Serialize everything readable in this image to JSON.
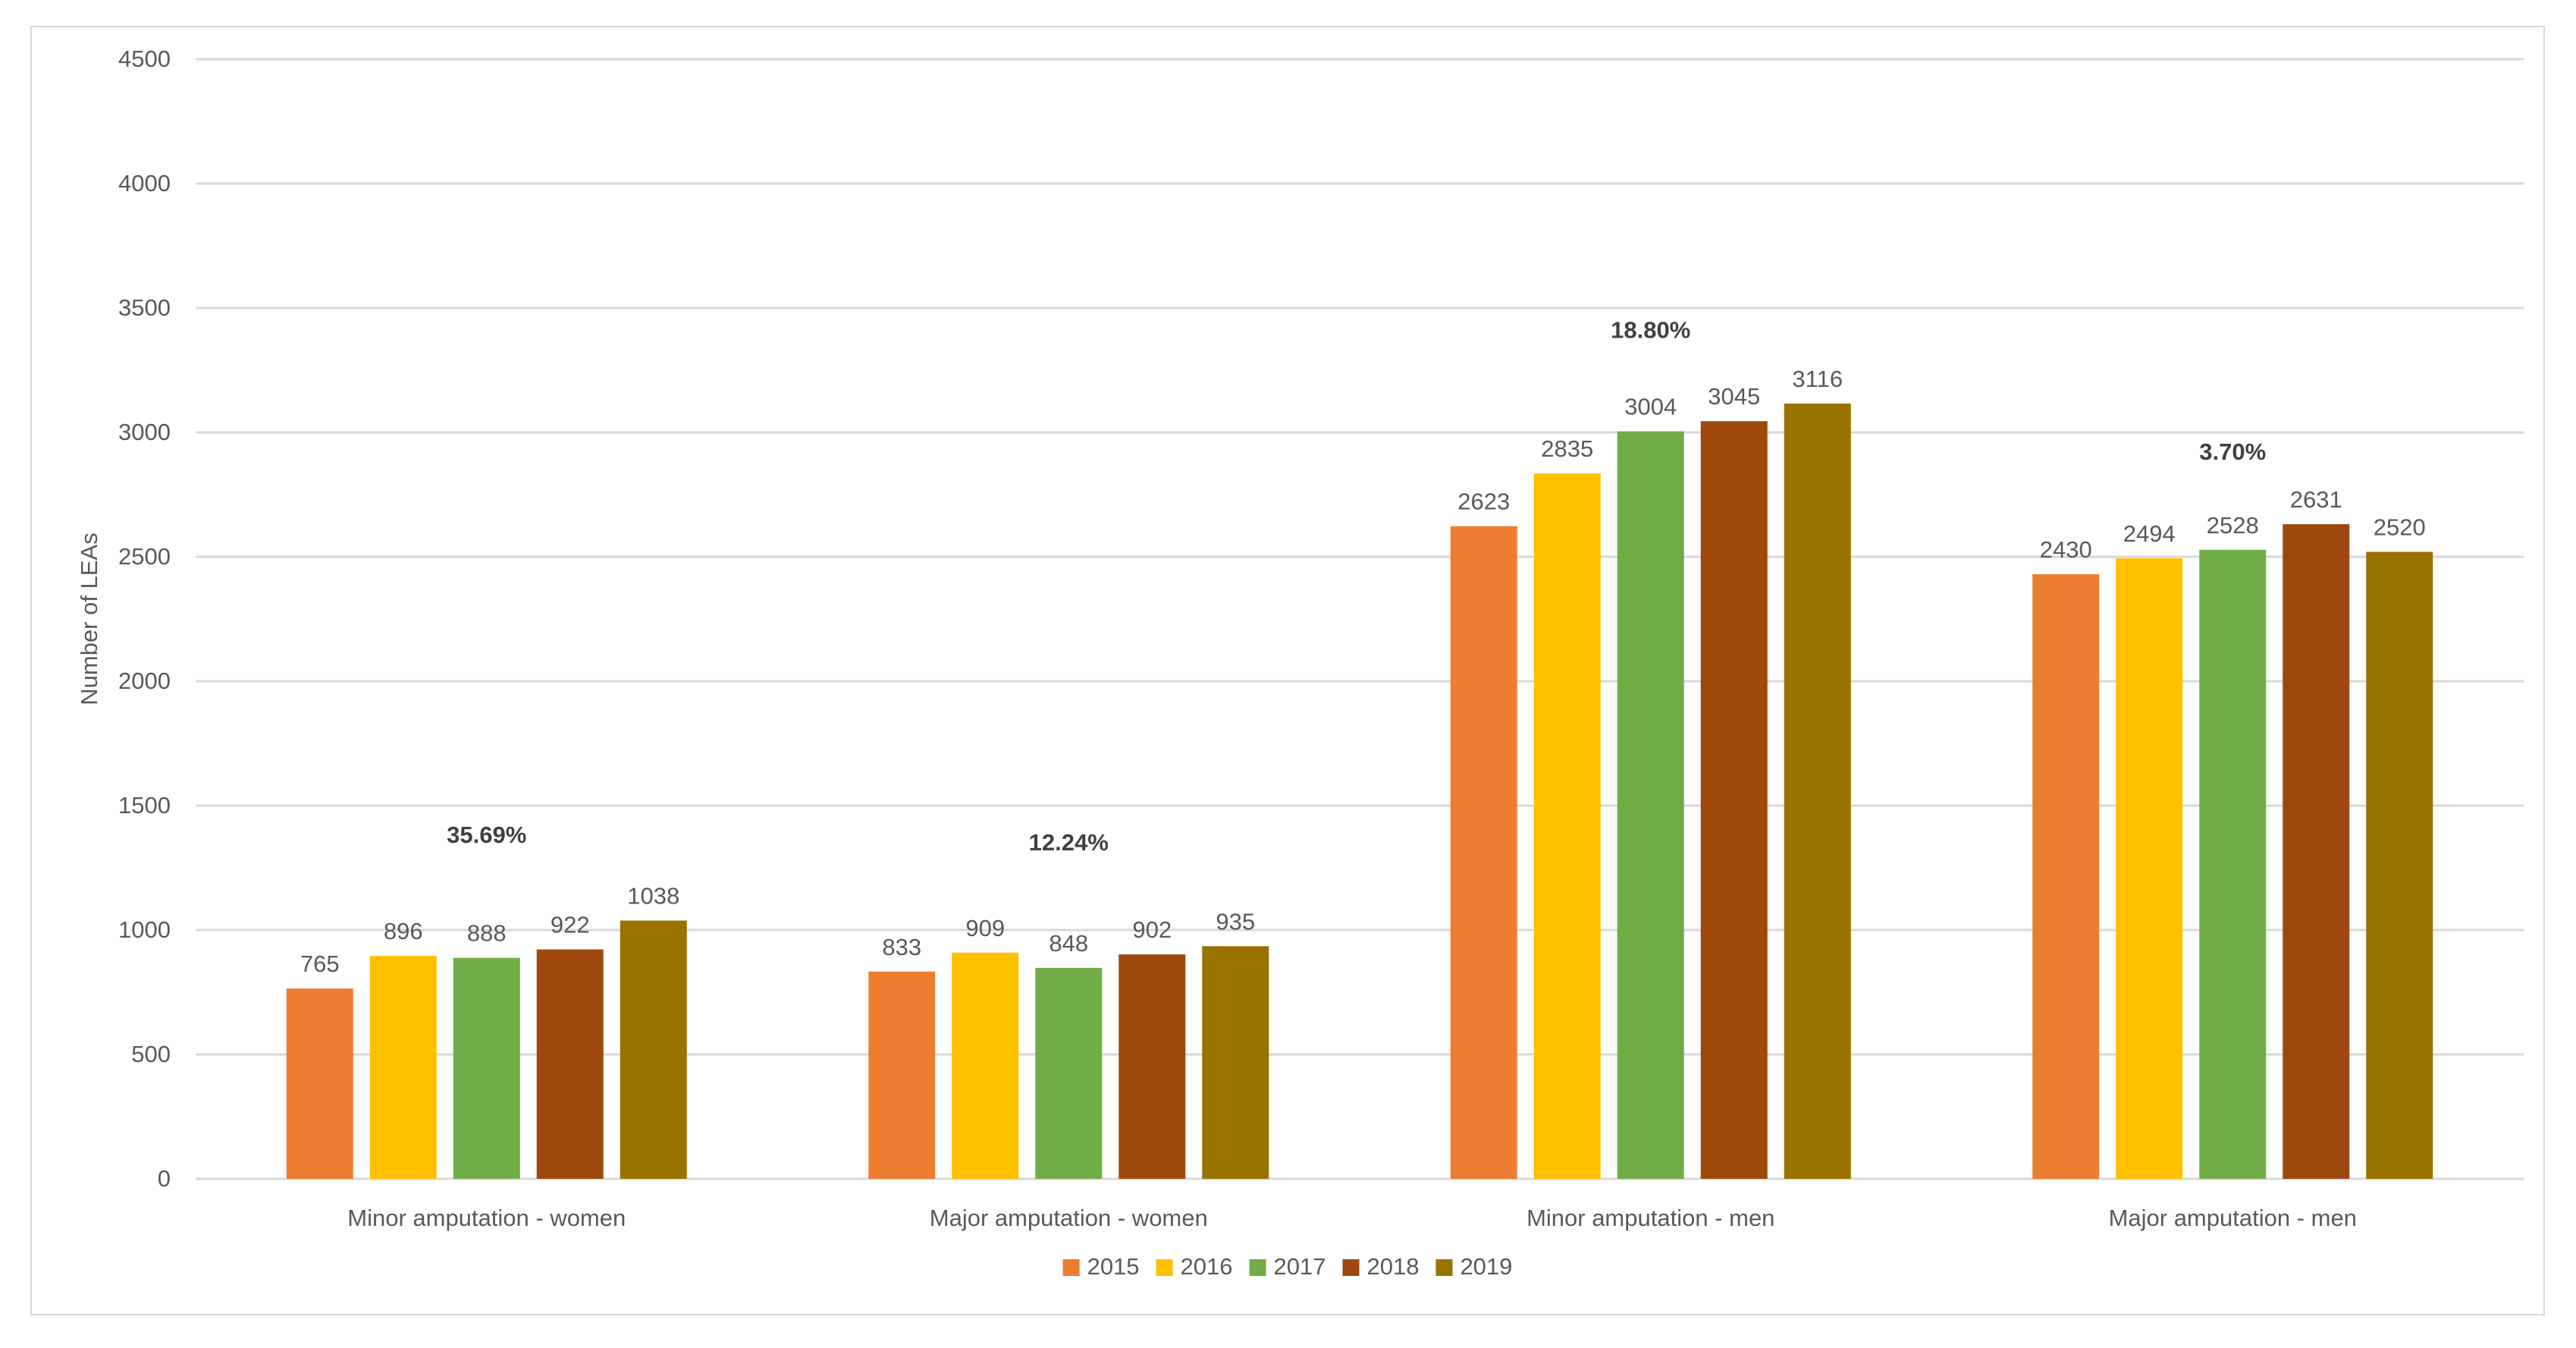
{
  "chart_data": {
    "type": "bar",
    "title": "",
    "xlabel": "",
    "ylabel": "Number of LEAs",
    "ylim": [
      0,
      4500
    ],
    "yticks": [
      0,
      500,
      1000,
      1500,
      2000,
      2500,
      3000,
      3500,
      4000,
      4500
    ],
    "grid": true,
    "legend_position": "bottom",
    "categories": [
      "Minor amputation - women",
      "Major amputation - women",
      "Minor amputation - men",
      "Major amputation - men"
    ],
    "series": [
      {
        "name": "2015",
        "color": "#ED7D31",
        "values": [
          765,
          833,
          2623,
          2430
        ]
      },
      {
        "name": "2016",
        "color": "#FFC000",
        "values": [
          896,
          909,
          2835,
          2494
        ]
      },
      {
        "name": "2017",
        "color": "#70AD47",
        "values": [
          888,
          848,
          3004,
          2528
        ]
      },
      {
        "name": "2018",
        "color": "#9E480E",
        "values": [
          922,
          902,
          3045,
          2631
        ]
      },
      {
        "name": "2019",
        "color": "#997300",
        "values": [
          1038,
          935,
          3116,
          2520
        ]
      }
    ],
    "annotations": [
      {
        "category": "Minor amputation - women",
        "text": "35.69%",
        "y": 1350
      },
      {
        "category": "Major amputation - women",
        "text": "12.24%",
        "y": 1320
      },
      {
        "category": "Minor amputation - men",
        "text": "18.80%",
        "y": 3380
      },
      {
        "category": "Major amputation - men",
        "text": "3.70%",
        "y": 2890
      }
    ],
    "colors": {
      "grid": "#d9d9d9",
      "axis_text": "#595959",
      "annotation_text": "#404040",
      "frame": "#d9d9d9"
    }
  }
}
